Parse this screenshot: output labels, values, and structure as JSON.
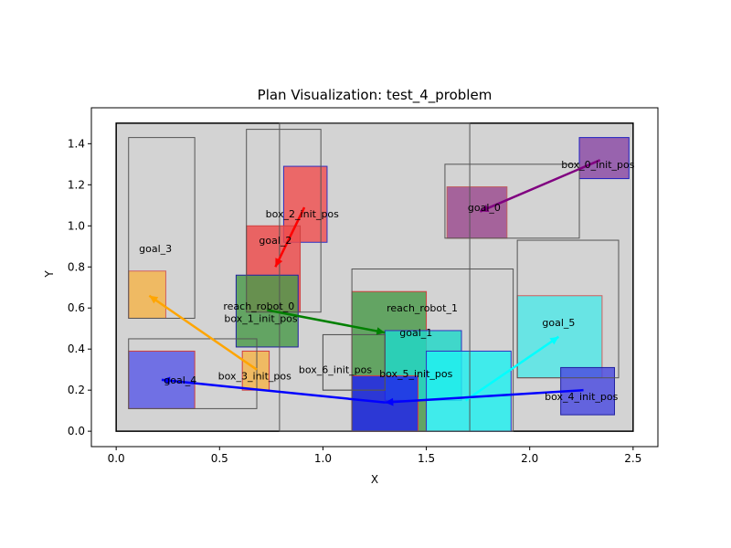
{
  "chart_data": {
    "type": "diagram",
    "title": "Plan Visualization: test_4_problem",
    "xlabel": "X",
    "ylabel": "Y",
    "xlim": [
      -0.12,
      2.62
    ],
    "ylim": [
      -0.075,
      1.575
    ],
    "xticks": [
      "0.0",
      "0.5",
      "1.0",
      "1.5",
      "2.0",
      "2.5"
    ],
    "yticks": [
      "0.0",
      "0.2",
      "0.4",
      "0.6",
      "0.8",
      "1.0",
      "1.2",
      "1.4"
    ],
    "workspace": {
      "x0": 0.0,
      "y0": 0.0,
      "x1": 2.5,
      "y1": 1.5
    },
    "outlines": [
      {
        "x0": 0.06,
        "y0": 0.55,
        "x1": 0.38,
        "y1": 1.43
      },
      {
        "x0": 0.63,
        "y0": 0.58,
        "x1": 0.99,
        "y1": 1.47
      },
      {
        "x0": 0.79,
        "y0": 0.0,
        "x1": 1.71,
        "y1": 1.5
      },
      {
        "x0": 1.59,
        "y0": 0.94,
        "x1": 2.24,
        "y1": 1.3
      },
      {
        "x0": 1.94,
        "y0": 0.26,
        "x1": 2.43,
        "y1": 0.93
      },
      {
        "x0": 1.14,
        "y0": 0.0,
        "x1": 1.92,
        "y1": 0.79
      },
      {
        "x0": 0.06,
        "y0": 0.11,
        "x1": 0.68,
        "y1": 0.45
      },
      {
        "x0": 1.0,
        "y0": 0.2,
        "x1": 1.3,
        "y1": 0.47
      }
    ],
    "boxes": [
      {
        "label": "box_0_init_pos",
        "x0": 2.24,
        "y0": 1.23,
        "x1": 2.48,
        "y1": 1.43,
        "fill": "#8b4aa6",
        "stroke": "#2020c0",
        "lx": 2.33,
        "ly": 1.3
      },
      {
        "label": "goal_0",
        "x0": 1.6,
        "y0": 0.94,
        "x1": 1.89,
        "y1": 1.19,
        "fill": "#9b4a8f",
        "stroke": "#c06060",
        "lx": 1.78,
        "ly": 1.09
      },
      {
        "label": "box_2_init_pos",
        "x0": 0.81,
        "y0": 0.92,
        "x1": 1.02,
        "y1": 1.29,
        "fill": "#f05050",
        "stroke": "#3030c0",
        "lx": 0.9,
        "ly": 1.06
      },
      {
        "label": "goal_2",
        "x0": 0.63,
        "y0": 0.58,
        "x1": 0.89,
        "y1": 1.0,
        "fill": "#ee4a4a",
        "stroke": "#d04040",
        "lx": 0.77,
        "ly": 0.93
      },
      {
        "label": "goal_3",
        "x0": 0.06,
        "y0": 0.55,
        "x1": 0.24,
        "y1": 0.78,
        "fill": "#f5b54a",
        "stroke": "#d06060",
        "lx": 0.19,
        "ly": 0.89
      },
      {
        "label": "box_1_init_pos",
        "x0": 0.58,
        "y0": 0.41,
        "x1": 0.88,
        "y1": 0.76,
        "fill": "#4a9a4a",
        "stroke": "#2020a0",
        "lx": 0.7,
        "ly": 0.55
      },
      {
        "label": "reach_robot_1",
        "x0": 1.14,
        "y0": 0.0,
        "x1": 1.5,
        "y1": 0.68,
        "fill": "#4a9a4a",
        "stroke": "#d04040",
        "lx": 1.48,
        "ly": 0.6
      },
      {
        "label": "goal_5",
        "x0": 1.94,
        "y0": 0.26,
        "x1": 2.35,
        "y1": 0.66,
        "fill": "#50e8e8",
        "stroke": "#d06060",
        "lx": 2.14,
        "ly": 0.53
      },
      {
        "label": "goal_1",
        "x0": 1.3,
        "y0": 0.15,
        "x1": 1.67,
        "y1": 0.49,
        "fill": "#20d8c8",
        "stroke": "#3030c0",
        "lx": 1.45,
        "ly": 0.48
      },
      {
        "label": "box_5_init_pos",
        "x0": 1.5,
        "y0": 0.0,
        "x1": 1.91,
        "y1": 0.39,
        "fill": "#20f0f0",
        "stroke": "#3030c0",
        "lx": 1.45,
        "ly": 0.28
      },
      {
        "label": "",
        "x0": 1.14,
        "y0": 0.0,
        "x1": 1.46,
        "y1": 0.27,
        "fill": "#2020ee",
        "stroke": "#d04040",
        "lx": 1.3,
        "ly": 0.13
      },
      {
        "label": "box_4_init_pos",
        "x0": 2.15,
        "y0": 0.08,
        "x1": 2.41,
        "y1": 0.31,
        "fill": "#4a4ae0",
        "stroke": "#2020a0",
        "lx": 2.25,
        "ly": 0.17
      },
      {
        "label": "goal_4",
        "x0": 0.06,
        "y0": 0.11,
        "x1": 0.38,
        "y1": 0.39,
        "fill": "#5a5ae8",
        "stroke": "#d04040",
        "lx": 0.31,
        "ly": 0.25
      },
      {
        "label": "box_3_init_pos",
        "x0": 0.61,
        "y0": 0.2,
        "x1": 0.74,
        "y1": 0.39,
        "fill": "#f5b54a",
        "stroke": "#d04040",
        "lx": 0.67,
        "ly": 0.27
      },
      {
        "label": "box_6_init_pos",
        "x0": 1.0,
        "y0": 0.2,
        "x1": 1.3,
        "y1": 0.47,
        "fill": "none",
        "stroke": "#555555",
        "lx": 1.06,
        "ly": 0.3
      },
      {
        "label": "reach_robot_0",
        "x0": 0.58,
        "y0": 0.41,
        "x1": 0.88,
        "y1": 0.76,
        "fill": "none",
        "stroke": "none",
        "lx": 0.69,
        "ly": 0.61
      }
    ],
    "arrows": [
      {
        "x0": 2.34,
        "y0": 1.32,
        "x1": 1.76,
        "y1": 1.07,
        "color": "#800080"
      },
      {
        "x0": 0.91,
        "y0": 1.09,
        "x1": 0.77,
        "y1": 0.8,
        "color": "#ff0000"
      },
      {
        "x0": 0.73,
        "y0": 0.59,
        "x1": 1.3,
        "y1": 0.48,
        "color": "#008000"
      },
      {
        "x0": 0.68,
        "y0": 0.3,
        "x1": 0.16,
        "y1": 0.66,
        "color": "#ffa500"
      },
      {
        "x0": 1.69,
        "y0": 0.15,
        "x1": 2.14,
        "y1": 0.46,
        "color": "#00ffff"
      },
      {
        "x0": 2.26,
        "y0": 0.2,
        "x1": 1.3,
        "y1": 0.14,
        "color": "#0000ff"
      },
      {
        "x0": 1.3,
        "y0": 0.14,
        "x1": 0.22,
        "y1": 0.25,
        "color": "#0000ff"
      }
    ]
  }
}
